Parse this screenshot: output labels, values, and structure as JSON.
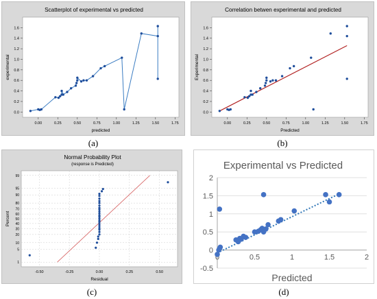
{
  "panels": [
    {
      "caption": "(a)",
      "chart_data": {
        "type": "line",
        "title": "Scatterplot of experimental vs predicted",
        "xlabel": "predicted",
        "ylabel": "experimental",
        "xlim": [
          -0.2,
          1.8
        ],
        "ylim": [
          -0.1,
          1.8
        ],
        "xticks": [
          "0.00",
          "0.25",
          "0.50",
          "0.75",
          "1.00",
          "1.25",
          "1.50",
          "1.75"
        ],
        "yticks": [
          "0.0",
          "0.2",
          "0.4",
          "0.6",
          "0.8",
          "1.0",
          "1.2",
          "1.4",
          "1.6"
        ],
        "x": [
          -0.1,
          0.0,
          0.02,
          0.04,
          0.22,
          0.26,
          0.28,
          0.3,
          0.3,
          0.32,
          0.37,
          0.42,
          0.48,
          0.49,
          0.5,
          0.5,
          0.55,
          0.58,
          0.62,
          0.7,
          0.8,
          0.85,
          1.07,
          1.1,
          1.32,
          1.53,
          1.53,
          1.53
        ],
        "y": [
          0.02,
          0.05,
          0.04,
          0.05,
          0.28,
          0.27,
          0.3,
          0.33,
          0.4,
          0.33,
          0.38,
          0.45,
          0.5,
          0.55,
          0.6,
          0.65,
          0.58,
          0.6,
          0.6,
          0.68,
          0.83,
          0.87,
          1.03,
          0.05,
          1.49,
          1.44,
          1.63,
          0.63
        ]
      }
    },
    {
      "caption": "(b)",
      "chart_data": {
        "type": "scatter",
        "title": "Correlation betwen experimental and predicted",
        "xlabel": "Predicted",
        "ylabel": "Experimental",
        "xlim": [
          -0.2,
          1.8
        ],
        "ylim": [
          -0.1,
          1.8
        ],
        "xticks": [
          "0.00",
          "0.25",
          "0.50",
          "0.75",
          "1.00",
          "1.25",
          "1.50",
          "1.75"
        ],
        "yticks": [
          "0.0",
          "0.2",
          "0.4",
          "0.6",
          "0.8",
          "1.0",
          "1.2",
          "1.4",
          "1.6"
        ],
        "x": [
          -0.1,
          0.0,
          0.02,
          0.04,
          0.22,
          0.26,
          0.28,
          0.3,
          0.3,
          0.32,
          0.37,
          0.42,
          0.48,
          0.49,
          0.5,
          0.5,
          0.55,
          0.58,
          0.62,
          0.7,
          0.8,
          0.85,
          1.07,
          1.1,
          1.32,
          1.53,
          1.53,
          1.53
        ],
        "y": [
          0.02,
          0.05,
          0.04,
          0.05,
          0.28,
          0.27,
          0.3,
          0.33,
          0.4,
          0.33,
          0.38,
          0.45,
          0.5,
          0.55,
          0.6,
          0.65,
          0.58,
          0.6,
          0.6,
          0.68,
          0.83,
          0.87,
          1.03,
          0.05,
          1.49,
          1.44,
          1.63,
          0.63
        ],
        "fit_line": {
          "x": [
            -0.1,
            1.53
          ],
          "y": [
            0.02,
            1.26
          ]
        }
      }
    },
    {
      "caption": "(c)",
      "chart_data": {
        "type": "scatter",
        "title": "Normal Probability Plot",
        "subtitle": "(response is Predicted)",
        "xlabel": "Residual",
        "ylabel": "Percent",
        "xlim": [
          -0.65,
          0.65
        ],
        "xticks": [
          "-0.50",
          "-0.25",
          "0.00",
          "0.25",
          "0.50"
        ],
        "yticks": [
          "1",
          "5",
          "10",
          "20",
          "30",
          "40",
          "50",
          "60",
          "70",
          "80",
          "90",
          "95",
          "99"
        ],
        "x": [
          -0.58,
          -0.03,
          -0.02,
          -0.01,
          -0.01,
          0.0,
          0.0,
          0.0,
          0.0,
          0.0,
          0.0,
          0.0,
          0.0,
          0.0,
          0.0,
          0.0,
          0.0,
          0.0,
          0.0,
          0.0,
          0.0,
          0.0,
          0.0,
          0.0,
          0.0,
          0.0,
          0.02,
          0.03,
          0.57
        ],
        "y": [
          2.5,
          6,
          10,
          14,
          17,
          20,
          24,
          28,
          31,
          35,
          39,
          43,
          46,
          50,
          54,
          57,
          61,
          65,
          69,
          72,
          76,
          80,
          83,
          86,
          89,
          91,
          93,
          94.5,
          97.5
        ],
        "ref_line": {
          "x": [
            -0.35,
            0.42
          ],
          "y": [
            1,
            99
          ]
        }
      }
    },
    {
      "caption": "(d)",
      "chart_data": {
        "type": "scatter",
        "title": "Experimental vs Predicted",
        "xlabel": "Predicted",
        "ylabel": "",
        "xlim": [
          0,
          2
        ],
        "ylim": [
          -0.5,
          2
        ],
        "xticks": [
          "0",
          "0.5",
          "1",
          "1.5",
          "2"
        ],
        "yticks": [
          "-0.5",
          "0",
          "0.5",
          "1",
          "1.5",
          "2"
        ],
        "x": [
          0.0,
          0.02,
          0.03,
          0.04,
          0.03,
          0.25,
          0.28,
          0.3,
          0.32,
          0.35,
          0.38,
          0.5,
          0.55,
          0.58,
          0.6,
          0.62,
          0.65,
          0.68,
          0.82,
          0.85,
          1.03,
          0.62,
          1.45,
          1.5,
          1.63
        ],
        "y": [
          -0.12,
          0.0,
          0.04,
          0.08,
          1.13,
          0.28,
          0.23,
          0.32,
          0.3,
          0.38,
          0.35,
          0.5,
          0.52,
          0.56,
          0.6,
          0.5,
          0.58,
          0.7,
          0.8,
          0.84,
          1.08,
          1.53,
          1.53,
          1.33,
          1.53
        ],
        "trend_line": {
          "x": [
            0.0,
            1.63
          ],
          "y": [
            -0.08,
            1.55
          ]
        }
      }
    }
  ]
}
